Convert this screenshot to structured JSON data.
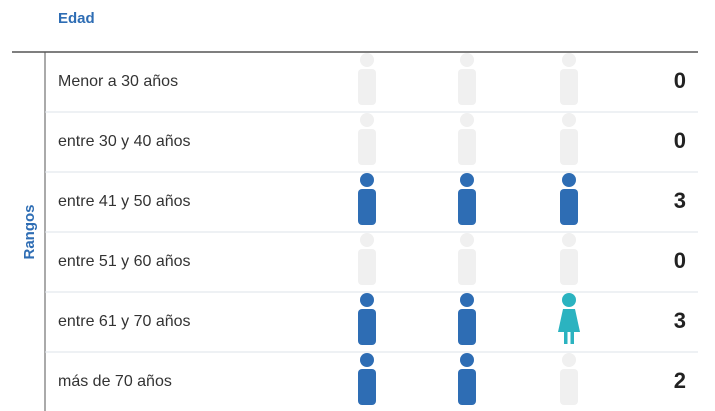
{
  "header": {
    "title": "Edad"
  },
  "side_label": "Rangos",
  "colors": {
    "male": "#2e6db4",
    "female": "#2bb3c0",
    "empty": "#f0f0f0"
  },
  "rows": [
    {
      "label": "Menor a 30 años",
      "count": 0,
      "icons": [
        null,
        null,
        null
      ]
    },
    {
      "label": "entre 30 y 40 años",
      "count": 0,
      "icons": [
        null,
        null,
        null
      ]
    },
    {
      "label": "entre 41 y 50 años",
      "count": 3,
      "icons": [
        "male",
        "male",
        "male"
      ]
    },
    {
      "label": "entre 51 y 60 años",
      "count": 0,
      "icons": [
        null,
        null,
        null
      ]
    },
    {
      "label": "entre 61 y 70 años",
      "count": 3,
      "icons": [
        "male",
        "male",
        "female"
      ]
    },
    {
      "label": "más de 70 años",
      "count": 2,
      "icons": [
        "male",
        "male",
        null
      ]
    }
  ]
}
